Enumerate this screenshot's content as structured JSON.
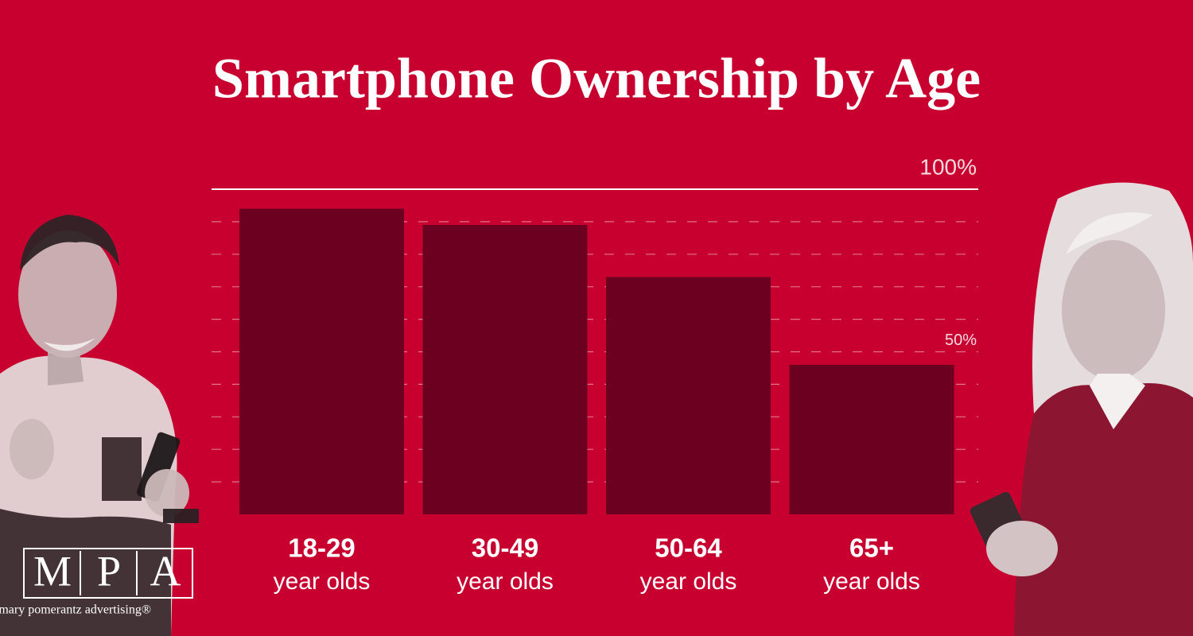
{
  "chart_data": {
    "type": "bar",
    "title": "Smartphone Ownership by Age",
    "categories": [
      {
        "label": "18-29",
        "sublabel": "year olds"
      },
      {
        "label": "30-49",
        "sublabel": "year olds"
      },
      {
        "label": "50-64",
        "sublabel": "year olds"
      },
      {
        "label": "65+",
        "sublabel": "year olds"
      }
    ],
    "values": [
      94,
      89,
      73,
      46
    ],
    "color": "#6b0020",
    "ylim": [
      0,
      100
    ],
    "yticks": [
      {
        "value": 10,
        "label": null
      },
      {
        "value": 20,
        "label": null
      },
      {
        "value": 30,
        "label": null
      },
      {
        "value": 40,
        "label": null
      },
      {
        "value": 50,
        "label": "50%"
      },
      {
        "value": 60,
        "label": null
      },
      {
        "value": 70,
        "label": null
      },
      {
        "value": 80,
        "label": null
      },
      {
        "value": 90,
        "label": null
      },
      {
        "value": 100,
        "label": "100%"
      }
    ],
    "grid": true
  },
  "logo": {
    "letters": [
      "M",
      "P",
      "A"
    ],
    "tagline": "mary pomerantz advertising®"
  }
}
